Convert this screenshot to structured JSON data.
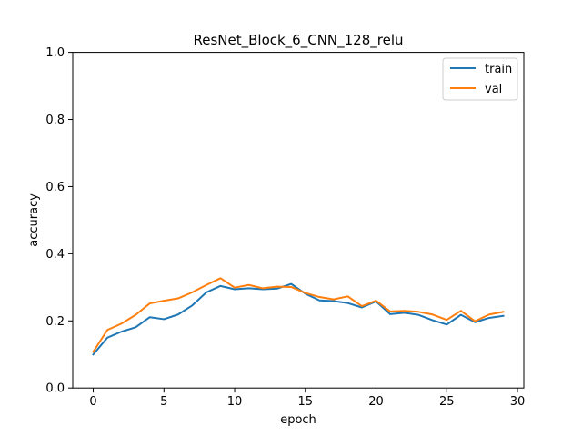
{
  "chart_data": {
    "type": "line",
    "title": "ResNet_Block_6_CNN_128_relu",
    "xlabel": "epoch",
    "ylabel": "accuracy",
    "xlim": [
      -1.45,
      30.45
    ],
    "ylim": [
      0.0,
      1.0
    ],
    "xticks": [
      0,
      5,
      10,
      15,
      20,
      25,
      30
    ],
    "yticks": [
      0.0,
      0.2,
      0.4,
      0.6,
      0.8,
      1.0
    ],
    "xtick_labels": [
      "0",
      "5",
      "10",
      "15",
      "20",
      "25",
      "30"
    ],
    "ytick_labels": [
      "0.0",
      "0.2",
      "0.4",
      "0.6",
      "0.8",
      "1.0"
    ],
    "grid": false,
    "legend_position": "top-right",
    "x": [
      0,
      1,
      2,
      3,
      4,
      5,
      6,
      7,
      8,
      9,
      10,
      11,
      12,
      13,
      14,
      15,
      16,
      17,
      18,
      19,
      20,
      21,
      22,
      23,
      24,
      25,
      26,
      27,
      28,
      29
    ],
    "series": [
      {
        "name": "train",
        "color": "#1f77b4",
        "values": [
          0.1,
          0.15,
          0.168,
          0.181,
          0.211,
          0.205,
          0.219,
          0.246,
          0.285,
          0.304,
          0.294,
          0.297,
          0.294,
          0.296,
          0.31,
          0.281,
          0.261,
          0.259,
          0.253,
          0.24,
          0.258,
          0.22,
          0.224,
          0.218,
          0.202,
          0.189,
          0.218,
          0.196,
          0.209,
          0.215
        ]
      },
      {
        "name": "val",
        "color": "#ff7f0e",
        "values": [
          0.108,
          0.173,
          0.192,
          0.218,
          0.252,
          0.26,
          0.267,
          0.285,
          0.307,
          0.327,
          0.299,
          0.307,
          0.297,
          0.302,
          0.301,
          0.283,
          0.271,
          0.264,
          0.273,
          0.244,
          0.26,
          0.228,
          0.23,
          0.227,
          0.219,
          0.203,
          0.23,
          0.199,
          0.219,
          0.227
        ]
      }
    ]
  }
}
